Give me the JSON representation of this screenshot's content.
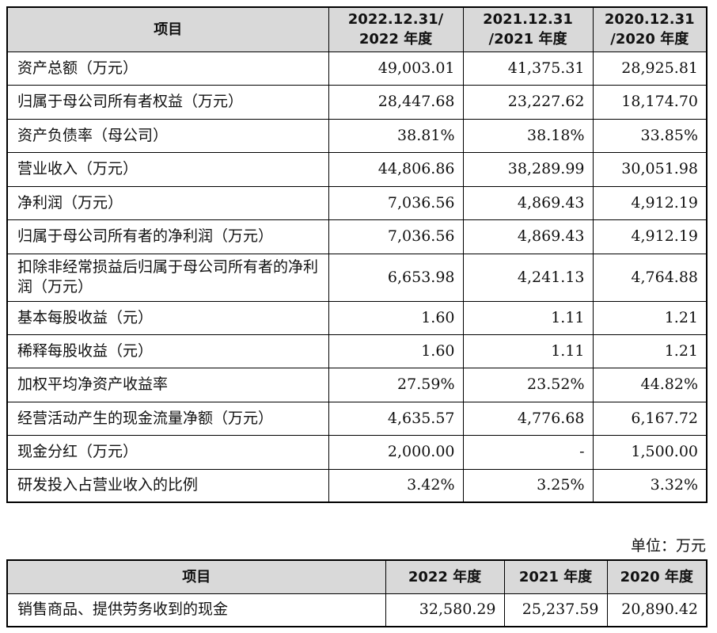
{
  "main_table": {
    "header": {
      "item": "项目",
      "col1": [
        "2022.12.31/",
        "2022 年度"
      ],
      "col2": [
        "2021.12.31",
        "/2021 年度"
      ],
      "col3": [
        "2020.12.31",
        "/2020 年度"
      ]
    },
    "rows": [
      {
        "label": "资产总额（万元）",
        "v1": "49,003.01",
        "v2": "41,375.31",
        "v3": "28,925.81"
      },
      {
        "label": "归属于母公司所有者权益（万元）",
        "v1": "28,447.68",
        "v2": "23,227.62",
        "v3": "18,174.70"
      },
      {
        "label": "资产负债率（母公司）",
        "v1": "38.81%",
        "v2": "38.18%",
        "v3": "33.85%"
      },
      {
        "label": "营业收入（万元）",
        "v1": "44,806.86",
        "v2": "38,289.99",
        "v3": "30,051.98"
      },
      {
        "label": "净利润（万元）",
        "v1": "7,036.56",
        "v2": "4,869.43",
        "v3": "4,912.19"
      },
      {
        "label": "归属于母公司所有者的净利润（万元）",
        "v1": "7,036.56",
        "v2": "4,869.43",
        "v3": "4,912.19"
      },
      {
        "label": "扣除非经常损益后归属于母公司所有者的净利润（万元）",
        "v1": "6,653.98",
        "v2": "4,241.13",
        "v3": "4,764.88"
      },
      {
        "label": "基本每股收益（元）",
        "v1": "1.60",
        "v2": "1.11",
        "v3": "1.21"
      },
      {
        "label": "稀释每股收益（元）",
        "v1": "1.60",
        "v2": "1.11",
        "v3": "1.21"
      },
      {
        "label": "加权平均净资产收益率",
        "v1": "27.59%",
        "v2": "23.52%",
        "v3": "44.82%"
      },
      {
        "label": "经营活动产生的现金流量净额（万元）",
        "v1": "4,635.57",
        "v2": "4,776.68",
        "v3": "6,167.72"
      },
      {
        "label": "现金分红（万元）",
        "v1": "2,000.00",
        "v2": "-",
        "v3": "1,500.00"
      },
      {
        "label": "研发投入占营业收入的比例",
        "v1": "3.42%",
        "v2": "3.25%",
        "v3": "3.32%"
      }
    ]
  },
  "unit_note": "单位：万元",
  "cash_table": {
    "header": {
      "item": "项目",
      "col1": "2022 年度",
      "col2": "2021 年度",
      "col3": "2020 年度"
    },
    "rows": [
      {
        "label": "销售商品、提供劳务收到的现金",
        "v1": "32,580.29",
        "v2": "25,237.59",
        "v3": "20,890.42"
      }
    ]
  }
}
